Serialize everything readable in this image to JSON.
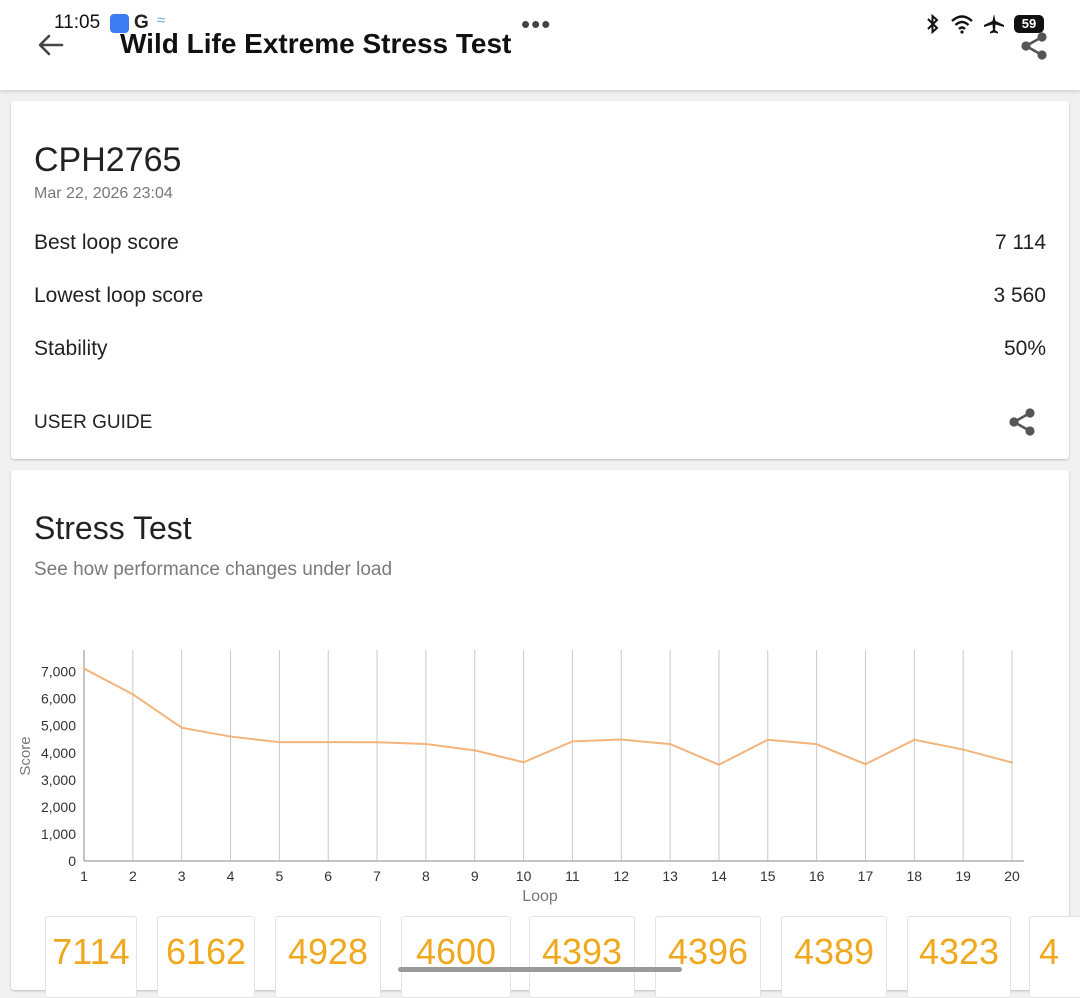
{
  "status_bar": {
    "time": "11:05",
    "g_label": "G",
    "battery": "59",
    "icons": [
      "bluetooth-icon",
      "wifi-icon",
      "airplane-icon",
      "battery-icon"
    ]
  },
  "appbar": {
    "title": "Wild Life Extreme Stress Test",
    "back_icon": "arrow-back-icon",
    "share_icon": "share-icon"
  },
  "summary": {
    "device": "CPH2765",
    "date": "Mar 22, 2026 23:04",
    "rows": [
      {
        "label": "Best loop score",
        "value": "7 114"
      },
      {
        "label": "Lowest loop score",
        "value": "3 560"
      },
      {
        "label": "Stability",
        "value": "50%"
      }
    ],
    "user_guide": "USER GUIDE"
  },
  "stress": {
    "title": "Stress Test",
    "subtitle": "See how performance changes under load"
  },
  "chart_data": {
    "type": "line",
    "xlabel": "Loop",
    "ylabel": "Score",
    "x": [
      1,
      2,
      3,
      4,
      5,
      6,
      7,
      8,
      9,
      10,
      11,
      12,
      13,
      14,
      15,
      16,
      17,
      18,
      19,
      20
    ],
    "y_ticks": [
      "0",
      "1,000",
      "2,000",
      "3,000",
      "4,000",
      "5,000",
      "6,000",
      "7,000"
    ],
    "ylim": [
      0,
      7800
    ],
    "series": [
      {
        "values": [
          7114,
          6162,
          4928,
          4600,
          4393,
          4396,
          4389,
          4323,
          4090,
          3650,
          4420,
          4490,
          4320,
          3560,
          4480,
          4320,
          3580,
          4480,
          4120,
          3640
        ]
      }
    ],
    "line_color": "#f2b47a",
    "grid": "vertical"
  },
  "loop_tiles": [
    "7114",
    "6162",
    "4928",
    "4600",
    "4393",
    "4396",
    "4389",
    "4323",
    "4"
  ]
}
